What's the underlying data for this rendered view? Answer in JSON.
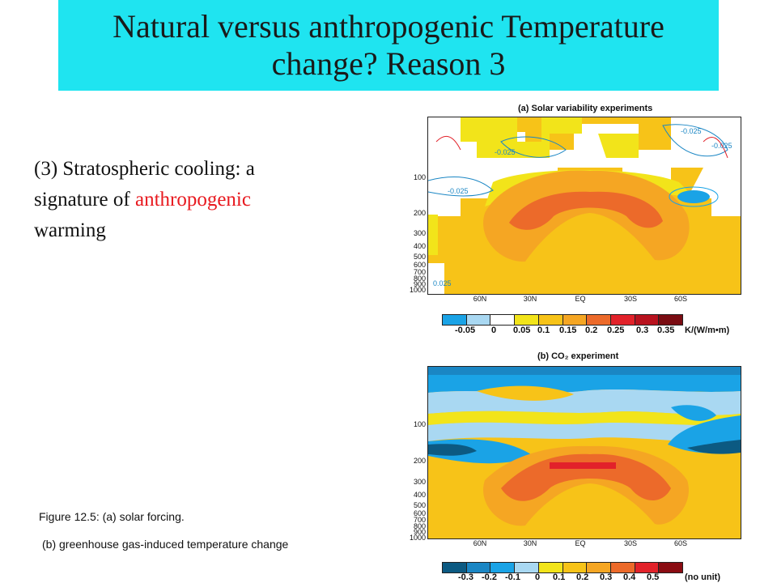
{
  "slide": {
    "title_line1": "Natural versus anthropogenic Temperature",
    "title_line2": "change?  Reason 3",
    "bullet_part1": "(3) Stratospheric cooling: a signature of ",
    "bullet_highlight": "anthropogenic",
    "bullet_part2": " warming",
    "caption_line1": "Figure 12.5: (a) solar forcing.",
    "caption_line2": "(b) greenhouse  gas-induced temperature  change",
    "colors": {
      "title_bg": "#1fe4f0",
      "highlight": "#e8191f"
    }
  },
  "figure": {
    "panel_a": {
      "title": "(a) Solar variability experiments",
      "y_ticks": [
        "100",
        "200",
        "300",
        "400",
        "500",
        "600",
        "700",
        "800",
        "900",
        "1000"
      ],
      "x_ticks": [
        "60N",
        "30N",
        "EQ",
        "30S",
        "60S"
      ],
      "contour_labels": [
        "-0.025",
        "-0.025",
        "-0.025",
        "-0.025",
        "-0.025",
        "-0.025",
        "-0.025",
        "0.025"
      ],
      "colorbar_ticks": [
        "-0.05",
        "0",
        "0.05",
        "0.1",
        "0.15",
        "0.2",
        "0.25",
        "0.3",
        "0.35"
      ],
      "colorbar_unit": "K/(W/m•m)",
      "colorbar_colors": [
        "#1aa3e6",
        "#a9d8f2",
        "#ffffff",
        "#f2e41a",
        "#f7c318",
        "#f5a623",
        "#ec6a2a",
        "#e2222a",
        "#b8121e",
        "#7a0c12"
      ]
    },
    "panel_b": {
      "title": "(b) CO₂ experiment",
      "y_ticks": [
        "100",
        "200",
        "300",
        "400",
        "500",
        "600",
        "700",
        "800",
        "900",
        "1000"
      ],
      "x_ticks": [
        "60N",
        "30N",
        "EQ",
        "30S",
        "60S"
      ],
      "colorbar_ticks": [
        "-0.3",
        "-0.2",
        "-0.1",
        "0",
        "0.1",
        "0.2",
        "0.3",
        "0.4",
        "0.5"
      ],
      "colorbar_unit": "(no unit)",
      "colorbar_colors": [
        "#0c5a82",
        "#1a86c4",
        "#1aa3e6",
        "#a9d8f2",
        "#f2e41a",
        "#f7c318",
        "#f5a623",
        "#ec6a2a",
        "#e2222a",
        "#8a0c12"
      ]
    }
  }
}
